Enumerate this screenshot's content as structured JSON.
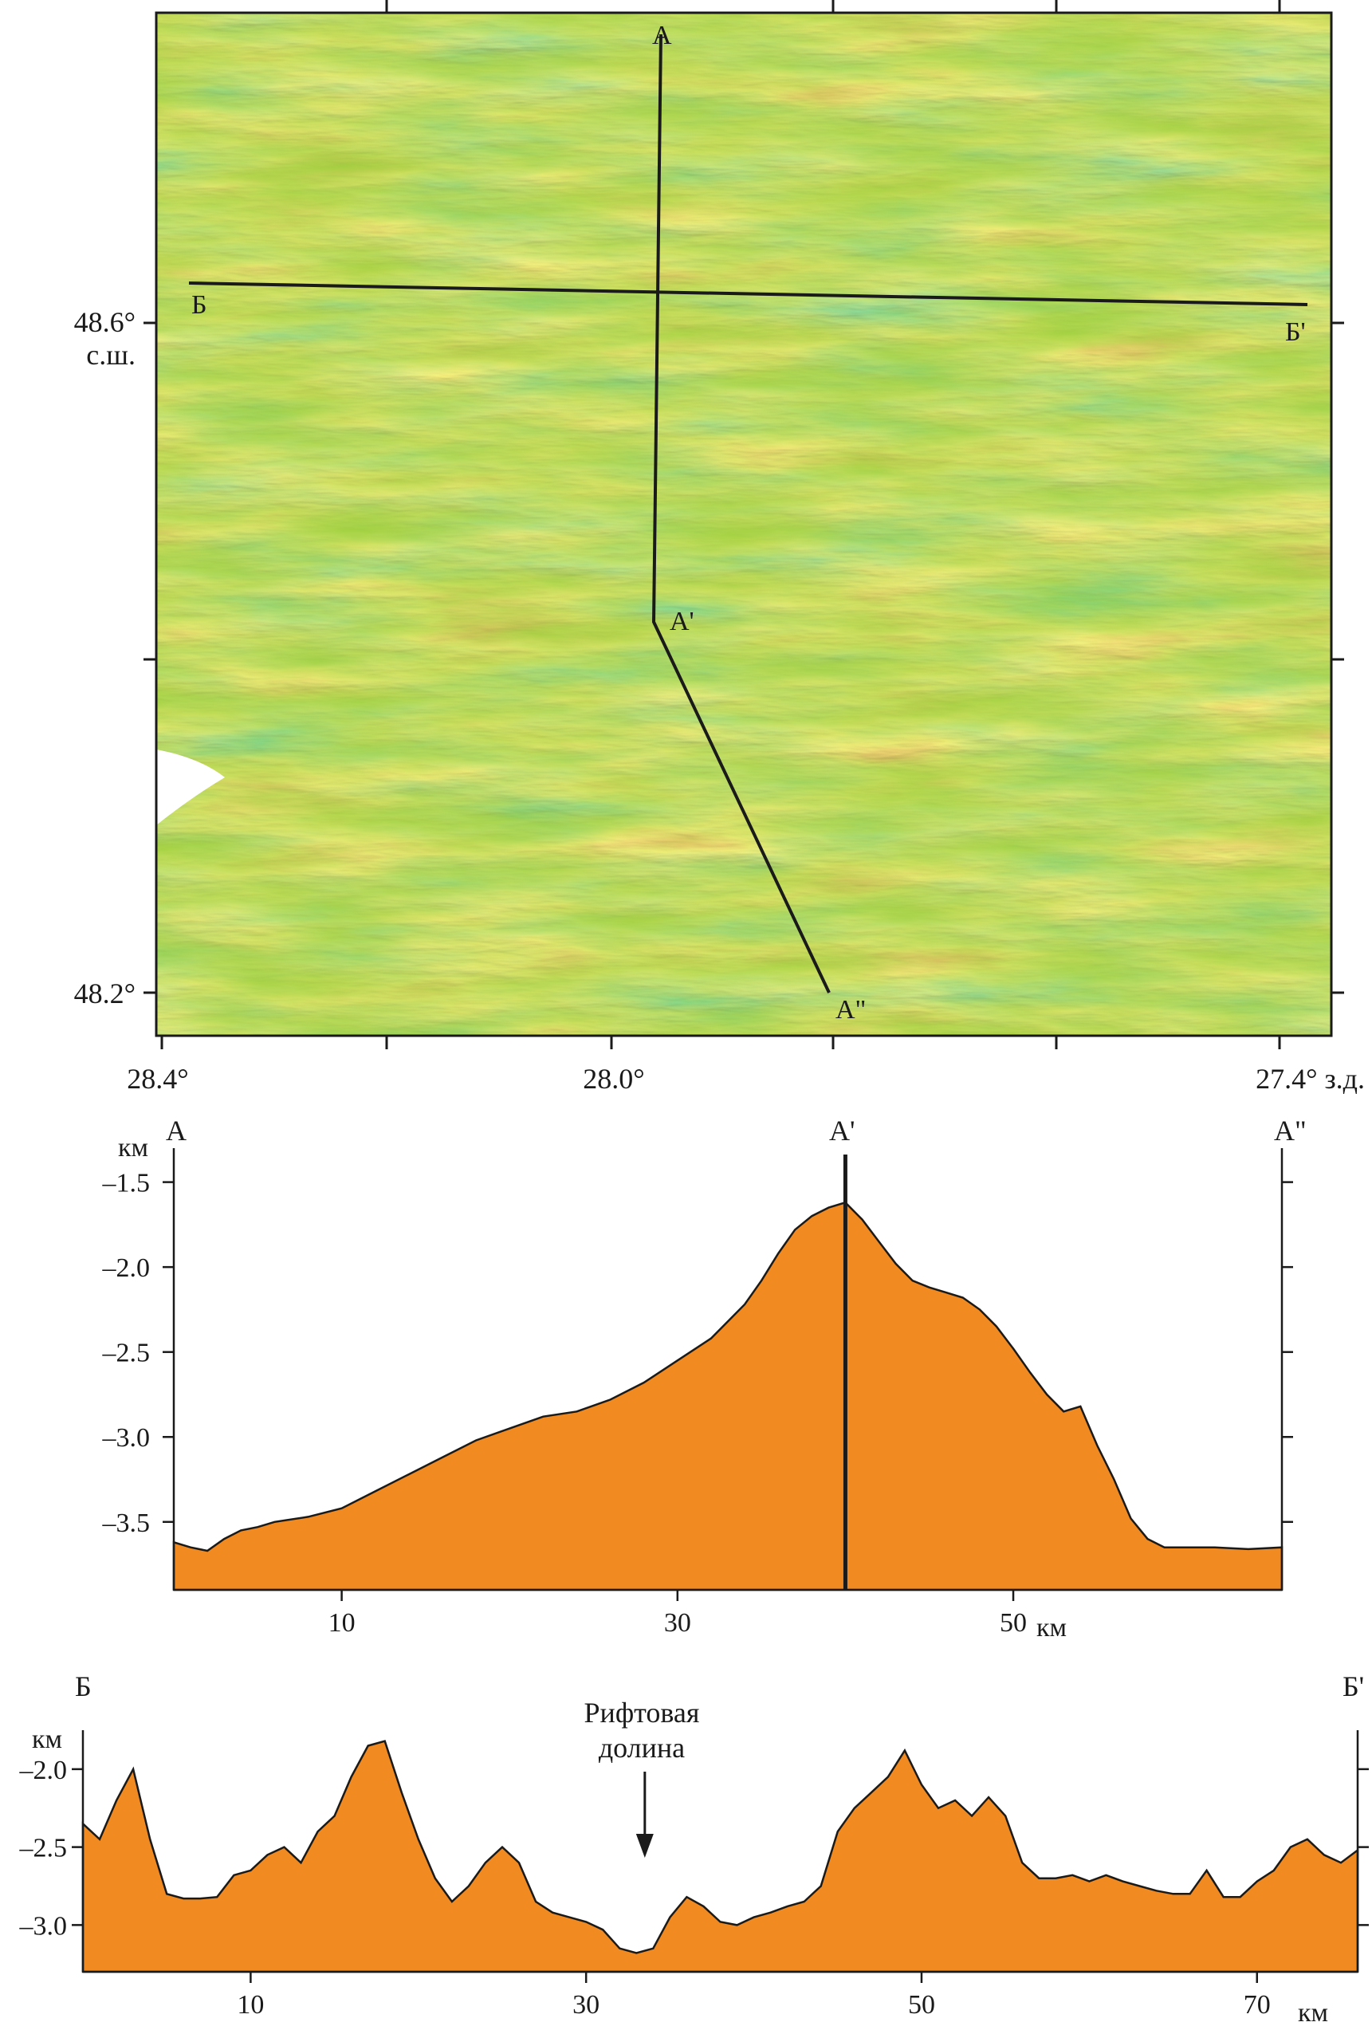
{
  "map": {
    "lat_labels": [
      "48.6°",
      "с.ш.",
      "48.2°"
    ],
    "lon_labels": [
      "28.4°",
      "28.0°",
      "27.4° з.д."
    ],
    "profile_labels": {
      "a": "А",
      "a1": "А'",
      "a2": "А\"",
      "b": "Б",
      "b1": "Б'"
    },
    "colors": {
      "deep": "#2aa8d8",
      "mid_deep": "#3cb85a",
      "mid": "#9ccf3c",
      "shallow": "#e6dc32",
      "high": "#e8962c",
      "peak": "#c8281e"
    }
  },
  "chart_data": [
    {
      "type": "area",
      "title": "",
      "start_label": "А",
      "mid_label": "А'",
      "end_label": "А\"",
      "ylabel": "км",
      "xlabel": "км",
      "xlim": [
        0,
        66
      ],
      "ylim": [
        -3.9,
        -1.3
      ],
      "yticks": [
        -1.5,
        -2.0,
        -2.5,
        -3.0,
        -3.5
      ],
      "ytick_labels": [
        "–1.5",
        "–2.0",
        "–2.5",
        "–3.0",
        "–3.5"
      ],
      "xticks": [
        10,
        30,
        50
      ],
      "xtick_labels": [
        "10",
        "30",
        "50"
      ],
      "marker_x": 40,
      "fill_color": "#f28a22",
      "x": [
        0,
        1,
        2,
        3,
        4,
        5,
        6,
        8,
        10,
        12,
        14,
        16,
        18,
        20,
        22,
        24,
        26,
        28,
        30,
        32,
        34,
        35,
        36,
        37,
        38,
        39,
        40,
        41,
        42,
        43,
        44,
        45,
        46,
        47,
        48,
        49,
        50,
        51,
        52,
        53,
        54,
        55,
        56,
        57,
        58,
        59,
        60,
        62,
        64,
        66
      ],
      "y": [
        -3.62,
        -3.65,
        -3.67,
        -3.6,
        -3.55,
        -3.53,
        -3.5,
        -3.47,
        -3.42,
        -3.32,
        -3.22,
        -3.12,
        -3.02,
        -2.95,
        -2.88,
        -2.85,
        -2.78,
        -2.68,
        -2.55,
        -2.42,
        -2.22,
        -2.08,
        -1.92,
        -1.78,
        -1.7,
        -1.65,
        -1.62,
        -1.72,
        -1.85,
        -1.98,
        -2.08,
        -2.12,
        -2.15,
        -2.18,
        -2.25,
        -2.35,
        -2.48,
        -2.62,
        -2.75,
        -2.85,
        -2.82,
        -3.05,
        -3.25,
        -3.48,
        -3.6,
        -3.65,
        -3.65,
        -3.65,
        -3.66,
        -3.65
      ]
    },
    {
      "type": "area",
      "title": "",
      "start_label": "Б",
      "end_label": "Б'",
      "ylabel": "км",
      "xlabel": "км",
      "xlim": [
        0,
        76
      ],
      "ylim": [
        -3.3,
        -1.75
      ],
      "yticks": [
        -2.0,
        -2.5,
        -3.0
      ],
      "ytick_labels": [
        "–2.0",
        "–2.5",
        "–3.0"
      ],
      "xticks": [
        10,
        30,
        50,
        70
      ],
      "xtick_labels": [
        "10",
        "30",
        "50",
        "70"
      ],
      "annotation": {
        "text_line1": "Рифтовая",
        "text_line2": "долина",
        "x": 33.5
      },
      "fill_color": "#f28a22",
      "x": [
        0,
        1,
        2,
        3,
        4,
        5,
        6,
        7,
        8,
        9,
        10,
        11,
        12,
        13,
        14,
        15,
        16,
        17,
        18,
        19,
        20,
        21,
        22,
        23,
        24,
        25,
        26,
        27,
        28,
        29,
        30,
        31,
        32,
        33,
        34,
        35,
        36,
        37,
        38,
        39,
        40,
        41,
        42,
        43,
        44,
        45,
        46,
        47,
        48,
        49,
        50,
        51,
        52,
        53,
        54,
        55,
        56,
        57,
        58,
        59,
        60,
        61,
        62,
        63,
        64,
        65,
        66,
        67,
        68,
        69,
        70,
        71,
        72,
        73,
        74,
        75,
        76
      ],
      "y": [
        -2.35,
        -2.45,
        -2.2,
        -2.0,
        -2.45,
        -2.8,
        -2.83,
        -2.83,
        -2.82,
        -2.68,
        -2.65,
        -2.55,
        -2.5,
        -2.6,
        -2.4,
        -2.3,
        -2.05,
        -1.85,
        -1.82,
        -2.15,
        -2.45,
        -2.7,
        -2.85,
        -2.75,
        -2.6,
        -2.5,
        -2.6,
        -2.85,
        -2.92,
        -2.95,
        -2.98,
        -3.03,
        -3.15,
        -3.18,
        -3.15,
        -2.95,
        -2.82,
        -2.88,
        -2.98,
        -3.0,
        -2.95,
        -2.92,
        -2.88,
        -2.85,
        -2.75,
        -2.4,
        -2.25,
        -2.15,
        -2.05,
        -1.88,
        -2.1,
        -2.25,
        -2.2,
        -2.3,
        -2.18,
        -2.3,
        -2.6,
        -2.7,
        -2.7,
        -2.68,
        -2.72,
        -2.68,
        -2.72,
        -2.75,
        -2.78,
        -2.8,
        -2.8,
        -2.65,
        -2.82,
        -2.82,
        -2.72,
        -2.65,
        -2.5,
        -2.45,
        -2.55,
        -2.6,
        -2.52
      ]
    }
  ]
}
